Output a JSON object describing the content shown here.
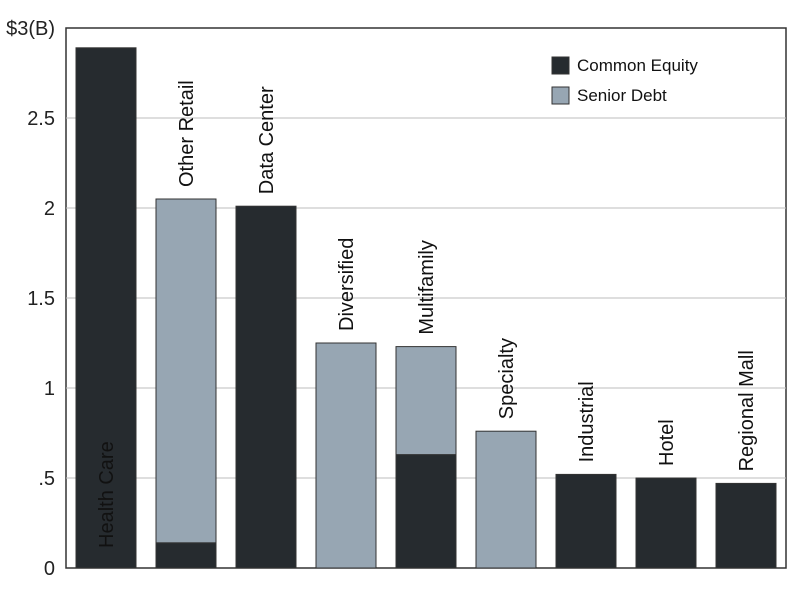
{
  "chart_data": {
    "type": "bar",
    "stacked": true,
    "categories": [
      "Health Care",
      "Other Retail",
      "Data Center",
      "Diversified",
      "Multifamily",
      "Specialty",
      "Industrial",
      "Hotel",
      "Regional Mall"
    ],
    "series": [
      {
        "name": "Common Equity",
        "color": "#262b2f",
        "values": [
          2.89,
          0.14,
          2.01,
          0,
          0.63,
          0,
          0.52,
          0.5,
          0.47
        ]
      },
      {
        "name": "Senior Debt",
        "color": "#97a6b3",
        "values": [
          0,
          1.91,
          0,
          1.25,
          0.6,
          0.76,
          0,
          0,
          0
        ]
      }
    ],
    "title": "",
    "xlabel": "",
    "ylabel": "",
    "ylim": [
      0,
      3
    ],
    "yticks": [
      {
        "value": 0,
        "label": "0"
      },
      {
        "value": 0.5,
        "label": ".5"
      },
      {
        "value": 1,
        "label": "1"
      },
      {
        "value": 1.5,
        "label": "1.5"
      },
      {
        "value": 2,
        "label": "2"
      },
      {
        "value": 2.5,
        "label": "2.5"
      },
      {
        "value": 3,
        "label": "$3(B)"
      }
    ],
    "grid": true,
    "legend_position": "top-right"
  }
}
